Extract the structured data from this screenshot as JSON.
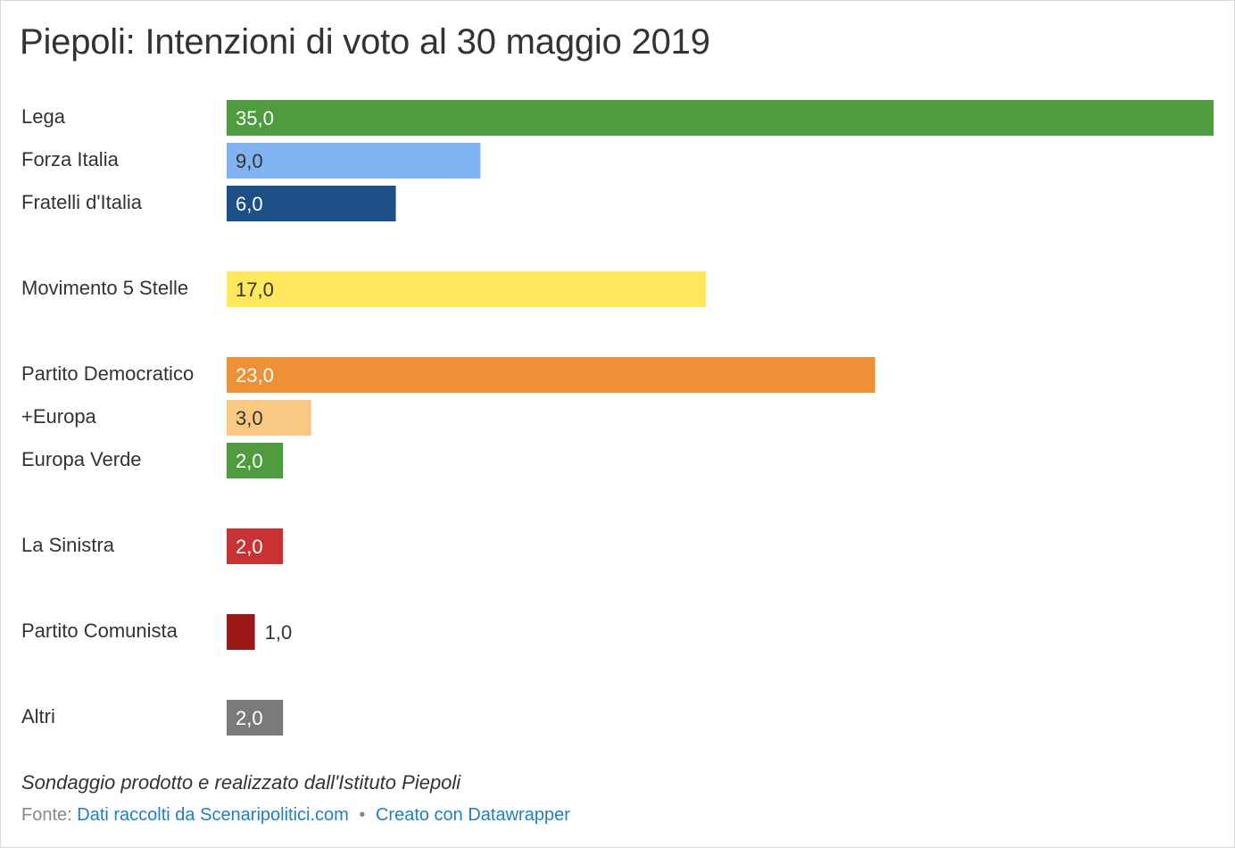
{
  "title": "Piepoli: Intenzioni di voto al 30 maggio 2019",
  "notes": "Sondaggio prodotto e realizzato dall'Istituto Piepoli",
  "footer": {
    "source_prefix": "Fonte:",
    "source_link": "Dati raccolti da Scenaripolitici.com",
    "separator": "•",
    "credit_link": "Creato con Datawrapper"
  },
  "chart_data": {
    "type": "bar",
    "orientation": "horizontal",
    "title": "Piepoli: Intenzioni di voto al 30 maggio 2019",
    "xlim": [
      0,
      35
    ],
    "grid": false,
    "categories": [
      "Lega",
      "Forza Italia",
      "Fratelli d'Italia",
      "Movimento 5 Stelle",
      "Partito Democratico",
      "+Europa",
      "Europa Verde",
      "La Sinistra",
      "Partito Comunista",
      "Altri"
    ],
    "values": [
      35.0,
      9.0,
      6.0,
      17.0,
      23.0,
      3.0,
      2.0,
      2.0,
      1.0,
      2.0
    ],
    "value_labels": [
      "35,0",
      "9,0",
      "6,0",
      "17,0",
      "23,0",
      "3,0",
      "2,0",
      "2,0",
      "1,0",
      "2,0"
    ],
    "groups": [
      [
        "Lega",
        "Forza Italia",
        "Fratelli d'Italia"
      ],
      [
        "Movimento 5 Stelle"
      ],
      [
        "Partito Democratico",
        "+Europa",
        "Europa Verde"
      ],
      [
        "La Sinistra"
      ],
      [
        "Partito Comunista"
      ],
      [
        "Altri"
      ]
    ],
    "colors": [
      "#4f9c3e",
      "#80b3f2",
      "#1c4f86",
      "#ffe75b",
      "#ee9136",
      "#f9c882",
      "#4f9c3e",
      "#c93232",
      "#9b1a17",
      "#7a7a7a"
    ],
    "label_colors": [
      "#ffffff",
      "#333333",
      "#ffffff",
      "#333333",
      "#ffffff",
      "#333333",
      "#ffffff",
      "#ffffff",
      "#333333",
      "#ffffff"
    ]
  }
}
